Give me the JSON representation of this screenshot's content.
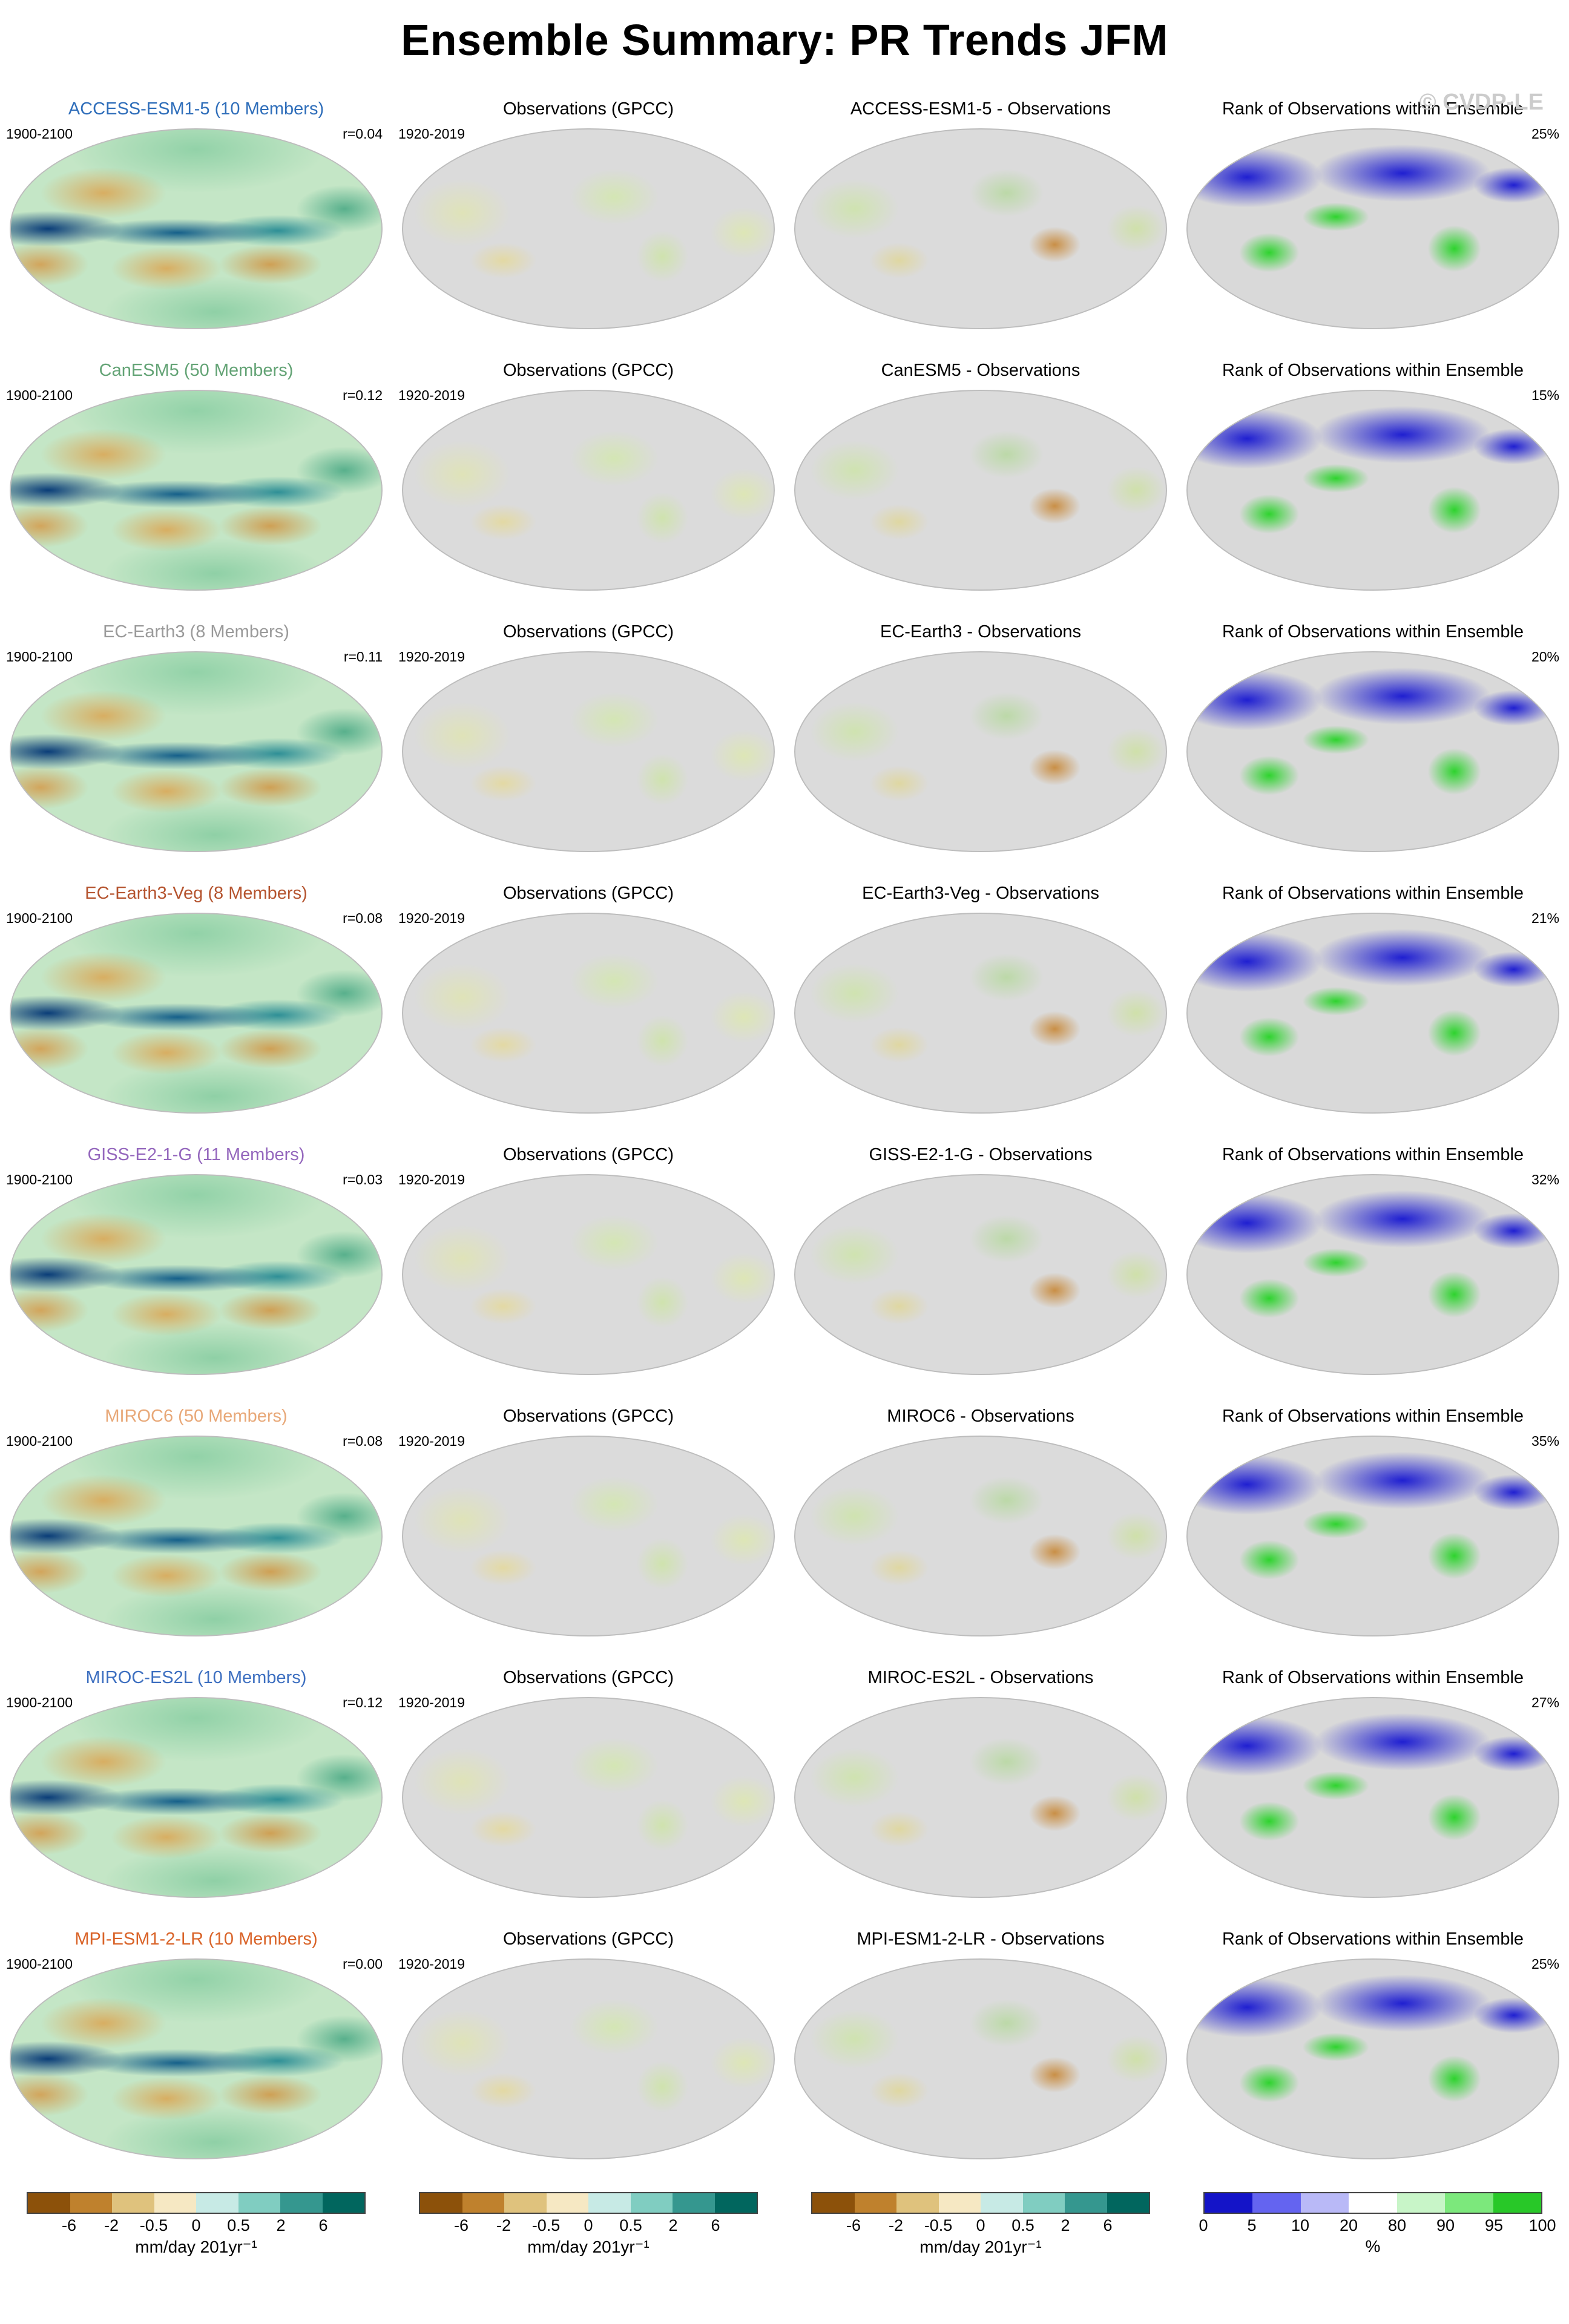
{
  "page": {
    "title": "Ensemble Summary: PR Trends JFM",
    "watermark": "© CVDP-LE"
  },
  "rows": [
    {
      "model": {
        "title": "ACCESS-ESM1-5 (10 Members)",
        "title_color": "#2f6eba",
        "period": "1900-2100",
        "r": "r=0.04"
      },
      "obs": {
        "title": "Observations (GPCC)",
        "period": "1920-2019"
      },
      "diff": {
        "title": "ACCESS-ESM1-5 - Observations"
      },
      "rank": {
        "title": "Rank of Observations within Ensemble",
        "pct": "25%"
      }
    },
    {
      "model": {
        "title": "CanESM5 (50 Members)",
        "title_color": "#63a375",
        "period": "1900-2100",
        "r": "r=0.12"
      },
      "obs": {
        "title": "Observations (GPCC)",
        "period": "1920-2019"
      },
      "diff": {
        "title": "CanESM5 - Observations"
      },
      "rank": {
        "title": "Rank of Observations within Ensemble",
        "pct": "15%"
      }
    },
    {
      "model": {
        "title": "EC-Earth3 (8 Members)",
        "title_color": "#9a9a9a",
        "period": "1900-2100",
        "r": "r=0.11"
      },
      "obs": {
        "title": "Observations (GPCC)",
        "period": "1920-2019"
      },
      "diff": {
        "title": "EC-Earth3 - Observations"
      },
      "rank": {
        "title": "Rank of Observations within Ensemble",
        "pct": "20%"
      }
    },
    {
      "model": {
        "title": "EC-Earth3-Veg (8 Members)",
        "title_color": "#b5542f",
        "period": "1900-2100",
        "r": "r=0.08"
      },
      "obs": {
        "title": "Observations (GPCC)",
        "period": "1920-2019"
      },
      "diff": {
        "title": "EC-Earth3-Veg - Observations"
      },
      "rank": {
        "title": "Rank of Observations within Ensemble",
        "pct": "21%"
      }
    },
    {
      "model": {
        "title": "GISS-E2-1-G (11 Members)",
        "title_color": "#9467bd",
        "period": "1900-2100",
        "r": "r=0.03"
      },
      "obs": {
        "title": "Observations (GPCC)",
        "period": "1920-2019"
      },
      "diff": {
        "title": "GISS-E2-1-G - Observations"
      },
      "rank": {
        "title": "Rank of Observations within Ensemble",
        "pct": "32%"
      }
    },
    {
      "model": {
        "title": "MIROC6 (50 Members)",
        "title_color": "#e8a878",
        "period": "1900-2100",
        "r": "r=0.08"
      },
      "obs": {
        "title": "Observations (GPCC)",
        "period": "1920-2019"
      },
      "diff": {
        "title": "MIROC6 - Observations"
      },
      "rank": {
        "title": "Rank of Observations within Ensemble",
        "pct": "35%"
      }
    },
    {
      "model": {
        "title": "MIROC-ES2L (10 Members)",
        "title_color": "#3d6fc0",
        "period": "1900-2100",
        "r": "r=0.12"
      },
      "obs": {
        "title": "Observations (GPCC)",
        "period": "1920-2019"
      },
      "diff": {
        "title": "MIROC-ES2L - Observations"
      },
      "rank": {
        "title": "Rank of Observations within Ensemble",
        "pct": "27%"
      }
    },
    {
      "model": {
        "title": "MPI-ESM1-2-LR (10 Members)",
        "title_color": "#d96328",
        "period": "1900-2100",
        "r": "r=0.00"
      },
      "obs": {
        "title": "Observations (GPCC)",
        "period": "1920-2019"
      },
      "diff": {
        "title": "MPI-ESM1-2-LR - Observations"
      },
      "rank": {
        "title": "Rank of Observations within Ensemble",
        "pct": "25%"
      }
    }
  ],
  "colorbars": {
    "trend": {
      "colors": [
        "#8c510a",
        "#bf812d",
        "#dfc27d",
        "#f6e8c3",
        "#c7eae5",
        "#80cdc1",
        "#35978f",
        "#01665e"
      ],
      "ticks": [
        "-6",
        "-2",
        "-0.5",
        "0",
        "0.5",
        "2",
        "6"
      ],
      "unit": "mm/day 201yr⁻¹"
    },
    "rank": {
      "colors": [
        "#1414c8",
        "#6464f0",
        "#b9b9f7",
        "#ffffff",
        "#c8f5c8",
        "#7ce87c",
        "#28c828"
      ],
      "ticks": [
        "0",
        "5",
        "10",
        "20",
        "80",
        "90",
        "95",
        "100"
      ],
      "unit": "%"
    }
  }
}
